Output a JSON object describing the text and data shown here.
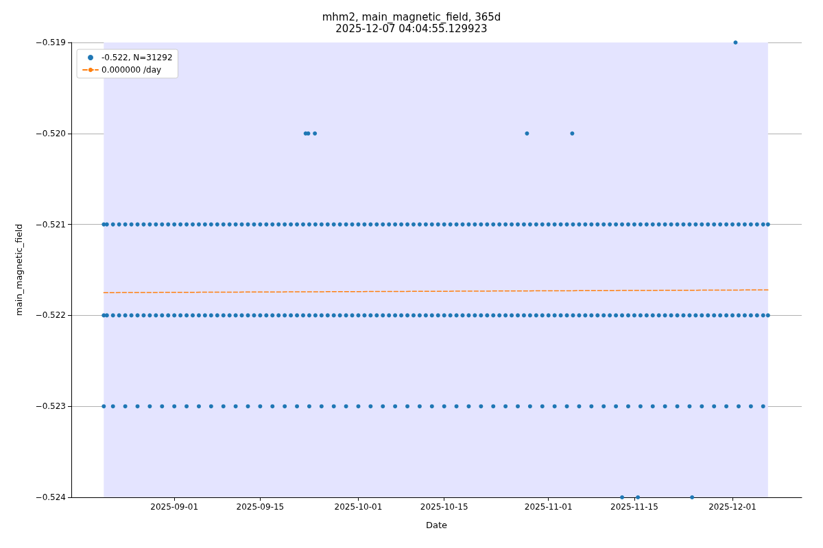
{
  "chart_data": {
    "type": "scatter",
    "title": "mhm2, main_magnetic_field, 365d",
    "subtitle": "2025-12-07 04:04:55.129923",
    "xlabel": "Date",
    "ylabel": "main_magnetic_field",
    "xlim": [
      "2025-08-15T05:00",
      "2025-12-12T07:00"
    ],
    "xticks": [
      "2025-09-01",
      "2025-09-15",
      "2025-10-01",
      "2025-10-15",
      "2025-11-01",
      "2025-11-15",
      "2025-12-01"
    ],
    "ylim": [
      -0.524,
      -0.519
    ],
    "yticks": [
      {
        "value": -0.524,
        "label": "−0.524"
      },
      {
        "value": -0.523,
        "label": "−0.523"
      },
      {
        "value": -0.522,
        "label": "−0.522"
      },
      {
        "value": -0.521,
        "label": "−0.521"
      },
      {
        "value": -0.52,
        "label": "−0.520"
      },
      {
        "value": -0.519,
        "label": "−0.519"
      }
    ],
    "grid": true,
    "legend": "top left",
    "marker": "circle",
    "bands": [
      {
        "axis": "x",
        "from": "2025-08-20T12:00",
        "to": "2025-12-06T19:00",
        "color": "#e4e4ff"
      }
    ],
    "series": [
      {
        "name": "-0.522, N=31292",
        "color": "#1f77b4",
        "x": [
          "2025-08-20T12:00",
          "2025-08-21",
          "2025-08-22",
          "2025-08-23",
          "2025-08-24",
          "2025-08-25",
          "2025-08-26",
          "2025-08-27",
          "2025-08-28",
          "2025-08-29",
          "2025-08-30",
          "2025-08-31",
          "2025-09-01",
          "2025-09-02",
          "2025-09-03",
          "2025-09-04",
          "2025-09-05",
          "2025-09-06",
          "2025-09-07",
          "2025-09-08",
          "2025-09-09",
          "2025-09-10",
          "2025-09-11",
          "2025-09-12",
          "2025-09-13",
          "2025-09-14",
          "2025-09-15",
          "2025-09-16",
          "2025-09-17",
          "2025-09-18",
          "2025-09-19",
          "2025-09-20",
          "2025-09-21",
          "2025-09-22",
          "2025-09-23",
          "2025-09-24",
          "2025-09-25",
          "2025-09-26",
          "2025-09-27",
          "2025-09-28",
          "2025-09-29",
          "2025-09-30",
          "2025-10-01",
          "2025-10-02",
          "2025-10-03",
          "2025-10-04",
          "2025-10-05",
          "2025-10-06",
          "2025-10-07",
          "2025-10-08",
          "2025-10-09",
          "2025-10-10",
          "2025-10-11",
          "2025-10-12",
          "2025-10-13",
          "2025-10-14",
          "2025-10-15",
          "2025-10-16",
          "2025-10-17",
          "2025-10-18",
          "2025-10-19",
          "2025-10-20",
          "2025-10-21",
          "2025-10-22",
          "2025-10-23",
          "2025-10-24",
          "2025-10-25",
          "2025-10-26",
          "2025-10-27",
          "2025-10-28",
          "2025-10-29",
          "2025-10-30",
          "2025-10-31",
          "2025-11-01",
          "2025-11-02",
          "2025-11-03",
          "2025-11-04",
          "2025-11-05",
          "2025-11-06",
          "2025-11-07",
          "2025-11-08",
          "2025-11-09",
          "2025-11-10",
          "2025-11-11",
          "2025-11-12",
          "2025-11-13",
          "2025-11-14",
          "2025-11-15",
          "2025-11-16",
          "2025-11-17",
          "2025-11-18",
          "2025-11-19",
          "2025-11-20",
          "2025-11-21",
          "2025-11-22",
          "2025-11-23",
          "2025-11-24",
          "2025-11-25",
          "2025-11-26",
          "2025-11-27",
          "2025-11-28",
          "2025-11-29",
          "2025-11-30",
          "2025-12-01",
          "2025-12-02",
          "2025-12-03",
          "2025-12-04",
          "2025-12-05",
          "2025-12-06",
          "2025-12-06T19:00",
          "2025-08-20T12:00",
          "2025-08-21",
          "2025-08-22",
          "2025-08-23",
          "2025-08-24",
          "2025-08-25",
          "2025-08-26",
          "2025-08-27",
          "2025-08-28",
          "2025-08-29",
          "2025-08-30",
          "2025-08-31",
          "2025-09-01",
          "2025-09-02",
          "2025-09-03",
          "2025-09-04",
          "2025-09-05",
          "2025-09-06",
          "2025-09-07",
          "2025-09-08",
          "2025-09-09",
          "2025-09-10",
          "2025-09-11",
          "2025-09-12",
          "2025-09-13",
          "2025-09-14",
          "2025-09-15",
          "2025-09-16",
          "2025-09-17",
          "2025-09-18",
          "2025-09-19",
          "2025-09-20",
          "2025-09-21",
          "2025-09-22",
          "2025-09-23",
          "2025-09-24",
          "2025-09-25",
          "2025-09-26",
          "2025-09-27",
          "2025-09-28",
          "2025-09-29",
          "2025-09-30",
          "2025-10-01",
          "2025-10-02",
          "2025-10-03",
          "2025-10-04",
          "2025-10-05",
          "2025-10-06",
          "2025-10-07",
          "2025-10-08",
          "2025-10-09",
          "2025-10-10",
          "2025-10-11",
          "2025-10-12",
          "2025-10-13",
          "2025-10-14",
          "2025-10-15",
          "2025-10-16",
          "2025-10-17",
          "2025-10-18",
          "2025-10-19",
          "2025-10-20",
          "2025-10-21",
          "2025-10-22",
          "2025-10-23",
          "2025-10-24",
          "2025-10-25",
          "2025-10-26",
          "2025-10-27",
          "2025-10-28",
          "2025-10-29",
          "2025-10-30",
          "2025-10-31",
          "2025-11-01",
          "2025-11-02",
          "2025-11-03",
          "2025-11-04",
          "2025-11-05",
          "2025-11-06",
          "2025-11-07",
          "2025-11-08",
          "2025-11-09",
          "2025-11-10",
          "2025-11-11",
          "2025-11-12",
          "2025-11-13",
          "2025-11-14",
          "2025-11-15",
          "2025-11-16",
          "2025-11-17",
          "2025-11-18",
          "2025-11-19",
          "2025-11-20",
          "2025-11-21",
          "2025-11-22",
          "2025-11-23",
          "2025-11-24",
          "2025-11-25",
          "2025-11-26",
          "2025-11-27",
          "2025-11-28",
          "2025-11-29",
          "2025-11-30",
          "2025-12-01",
          "2025-12-02",
          "2025-12-03",
          "2025-12-04",
          "2025-12-05",
          "2025-12-06",
          "2025-12-06T19:00",
          "2025-08-20T12:00",
          "2025-08-22",
          "2025-08-24",
          "2025-08-26",
          "2025-08-28",
          "2025-08-30",
          "2025-09-01",
          "2025-09-03",
          "2025-09-05",
          "2025-09-07",
          "2025-09-09",
          "2025-09-11",
          "2025-09-13",
          "2025-09-15",
          "2025-09-17",
          "2025-09-19",
          "2025-09-21",
          "2025-09-23",
          "2025-09-25",
          "2025-09-27",
          "2025-09-29",
          "2025-10-01",
          "2025-10-03",
          "2025-10-05",
          "2025-10-07",
          "2025-10-09",
          "2025-10-11",
          "2025-10-13",
          "2025-10-15",
          "2025-10-17",
          "2025-10-19",
          "2025-10-21",
          "2025-10-23",
          "2025-10-25",
          "2025-10-27",
          "2025-10-29",
          "2025-10-31",
          "2025-11-02",
          "2025-11-04",
          "2025-11-06",
          "2025-11-08",
          "2025-11-10",
          "2025-11-12",
          "2025-11-14",
          "2025-11-16",
          "2025-11-18",
          "2025-11-20",
          "2025-11-22",
          "2025-11-24",
          "2025-11-26",
          "2025-11-28",
          "2025-11-30",
          "2025-12-02",
          "2025-12-04",
          "2025-12-06",
          "2025-09-22T10:00",
          "2025-09-22T20:00",
          "2025-09-23T22:00",
          "2025-10-28T12:00",
          "2025-11-04T21:00",
          "2025-12-01T12:00",
          "2025-11-13",
          "2025-11-15T14:00",
          "2025-11-24T10:00"
        ],
        "values": [
          -0.521,
          -0.521,
          -0.521,
          -0.521,
          -0.521,
          -0.521,
          -0.521,
          -0.521,
          -0.521,
          -0.521,
          -0.521,
          -0.521,
          -0.521,
          -0.521,
          -0.521,
          -0.521,
          -0.521,
          -0.521,
          -0.521,
          -0.521,
          -0.521,
          -0.521,
          -0.521,
          -0.521,
          -0.521,
          -0.521,
          -0.521,
          -0.521,
          -0.521,
          -0.521,
          -0.521,
          -0.521,
          -0.521,
          -0.521,
          -0.521,
          -0.521,
          -0.521,
          -0.521,
          -0.521,
          -0.521,
          -0.521,
          -0.521,
          -0.521,
          -0.521,
          -0.521,
          -0.521,
          -0.521,
          -0.521,
          -0.521,
          -0.521,
          -0.521,
          -0.521,
          -0.521,
          -0.521,
          -0.521,
          -0.521,
          -0.521,
          -0.521,
          -0.521,
          -0.521,
          -0.521,
          -0.521,
          -0.521,
          -0.521,
          -0.521,
          -0.521,
          -0.521,
          -0.521,
          -0.521,
          -0.521,
          -0.521,
          -0.521,
          -0.521,
          -0.521,
          -0.521,
          -0.521,
          -0.521,
          -0.521,
          -0.521,
          -0.521,
          -0.521,
          -0.521,
          -0.521,
          -0.521,
          -0.521,
          -0.521,
          -0.521,
          -0.521,
          -0.521,
          -0.521,
          -0.521,
          -0.521,
          -0.521,
          -0.521,
          -0.521,
          -0.521,
          -0.521,
          -0.521,
          -0.521,
          -0.521,
          -0.521,
          -0.521,
          -0.521,
          -0.521,
          -0.521,
          -0.521,
          -0.521,
          -0.521,
          -0.521,
          -0.521,
          -0.522,
          -0.522,
          -0.522,
          -0.522,
          -0.522,
          -0.522,
          -0.522,
          -0.522,
          -0.522,
          -0.522,
          -0.522,
          -0.522,
          -0.522,
          -0.522,
          -0.522,
          -0.522,
          -0.522,
          -0.522,
          -0.522,
          -0.522,
          -0.522,
          -0.522,
          -0.522,
          -0.522,
          -0.522,
          -0.522,
          -0.522,
          -0.522,
          -0.522,
          -0.522,
          -0.522,
          -0.522,
          -0.522,
          -0.522,
          -0.522,
          -0.522,
          -0.522,
          -0.522,
          -0.522,
          -0.522,
          -0.522,
          -0.522,
          -0.522,
          -0.522,
          -0.522,
          -0.522,
          -0.522,
          -0.522,
          -0.522,
          -0.522,
          -0.522,
          -0.522,
          -0.522,
          -0.522,
          -0.522,
          -0.522,
          -0.522,
          -0.522,
          -0.522,
          -0.522,
          -0.522,
          -0.522,
          -0.522,
          -0.522,
          -0.522,
          -0.522,
          -0.522,
          -0.522,
          -0.522,
          -0.522,
          -0.522,
          -0.522,
          -0.522,
          -0.522,
          -0.522,
          -0.522,
          -0.522,
          -0.522,
          -0.522,
          -0.522,
          -0.522,
          -0.522,
          -0.522,
          -0.522,
          -0.522,
          -0.522,
          -0.522,
          -0.522,
          -0.522,
          -0.522,
          -0.522,
          -0.522,
          -0.522,
          -0.522,
          -0.522,
          -0.522,
          -0.522,
          -0.522,
          -0.522,
          -0.522,
          -0.522,
          -0.522,
          -0.522,
          -0.522,
          -0.522,
          -0.522,
          -0.522,
          -0.522,
          -0.522,
          -0.522,
          -0.523,
          -0.523,
          -0.523,
          -0.523,
          -0.523,
          -0.523,
          -0.523,
          -0.523,
          -0.523,
          -0.523,
          -0.523,
          -0.523,
          -0.523,
          -0.523,
          -0.523,
          -0.523,
          -0.523,
          -0.523,
          -0.523,
          -0.523,
          -0.523,
          -0.523,
          -0.523,
          -0.523,
          -0.523,
          -0.523,
          -0.523,
          -0.523,
          -0.523,
          -0.523,
          -0.523,
          -0.523,
          -0.523,
          -0.523,
          -0.523,
          -0.523,
          -0.523,
          -0.523,
          -0.523,
          -0.523,
          -0.523,
          -0.523,
          -0.523,
          -0.523,
          -0.523,
          -0.523,
          -0.523,
          -0.523,
          -0.523,
          -0.523,
          -0.523,
          -0.523,
          -0.523,
          -0.523,
          -0.523,
          -0.52,
          -0.52,
          -0.52,
          -0.52,
          -0.52,
          -0.519,
          -0.524,
          -0.524,
          -0.524
        ]
      },
      {
        "name": "0.000000 /day",
        "type": "line",
        "color": "#ff7f0e",
        "line_style": "dashed",
        "marker": "none",
        "x": [
          "2025-08-20T12:00",
          "2025-12-06T19:00"
        ],
        "values": [
          -0.52175,
          -0.52172
        ]
      }
    ]
  }
}
